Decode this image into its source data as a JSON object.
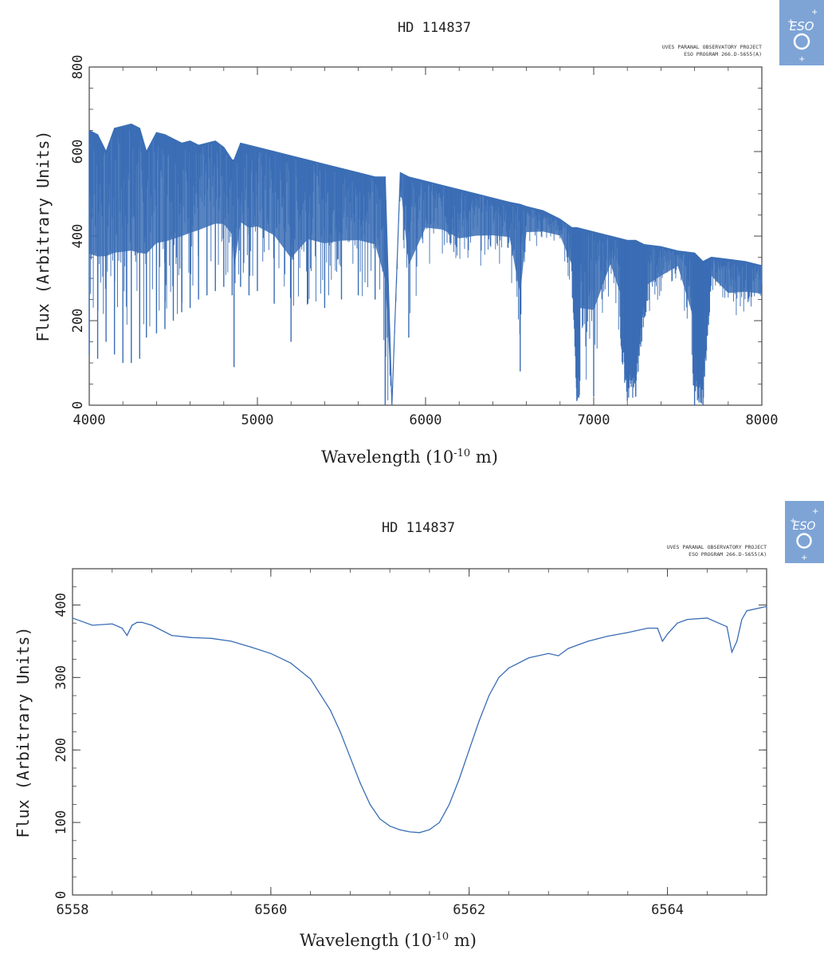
{
  "chart_data": [
    {
      "type": "line",
      "title": "HD 114837",
      "credit_lines": [
        "UVES PARANAL OBSERVATORY PROJECT",
        "ESO PROGRAM 266.D-5655(A)"
      ],
      "xlabel": "Wavelength (10",
      "xlabel_exp": "-10",
      "xlabel_unit": " m)",
      "ylabel": "Flux (Arbitrary Units)",
      "xlim": [
        4000,
        8000
      ],
      "ylim": [
        0,
        800
      ],
      "xticks": [
        "4000",
        "5000",
        "6000",
        "7000",
        "8000"
      ],
      "yticks": [
        "0",
        "200",
        "400",
        "600",
        "800"
      ],
      "grid": false,
      "color": "#3a6db5",
      "series": [
        {
          "x": [
            4000,
            4050,
            4100,
            4150,
            4200,
            4250,
            4300,
            4340,
            4400,
            4450,
            4500,
            4550,
            4600,
            4650,
            4700,
            4750,
            4800,
            4850,
            4861,
            4900,
            4950,
            5000,
            5100,
            5200,
            5300,
            5400,
            5500,
            5600,
            5700,
            5760,
            5800,
            5850,
            5900,
            6000,
            6100,
            6200,
            6300,
            6400,
            6500,
            6563,
            6600,
            6700,
            6800,
            6870,
            6900,
            7000,
            7100,
            7200,
            7250,
            7300,
            7400,
            7500,
            7600,
            7650,
            7700,
            7800,
            7900,
            8000
          ],
          "y_top": [
            650,
            640,
            600,
            655,
            660,
            665,
            655,
            600,
            645,
            640,
            630,
            620,
            625,
            615,
            620,
            625,
            610,
            580,
            580,
            620,
            615,
            610,
            600,
            590,
            580,
            570,
            560,
            550,
            540,
            540,
            0,
            550,
            540,
            530,
            520,
            510,
            500,
            490,
            480,
            475,
            470,
            460,
            440,
            420,
            420,
            410,
            400,
            390,
            390,
            380,
            375,
            365,
            360,
            340,
            350,
            345,
            340,
            330
          ],
          "y_min": [
            120,
            110,
            150,
            120,
            100,
            100,
            110,
            160,
            170,
            180,
            200,
            220,
            230,
            250,
            260,
            270,
            280,
            260,
            90,
            280,
            260,
            270,
            240,
            150,
            240,
            230,
            250,
            260,
            250,
            0,
            0,
            500,
            160,
            330,
            330,
            300,
            320,
            330,
            330,
            80,
            360,
            370,
            370,
            260,
            10,
            20,
            280,
            10,
            20,
            200,
            250,
            300,
            0,
            0,
            270,
            200,
            210,
            210
          ]
        }
      ]
    },
    {
      "type": "line",
      "title": "HD 114837",
      "credit_lines": [
        "UVES PARANAL OBSERVATORY PROJECT",
        "ESO PROGRAM 266.D-5655(A)"
      ],
      "xlabel": "Wavelength (10",
      "xlabel_exp": "-10",
      "xlabel_unit": " m)",
      "ylabel": "Flux (Arbitrary Units)",
      "xlim": [
        6558,
        6565
      ],
      "ylim": [
        0,
        450
      ],
      "xticks": [
        "6558",
        "6560",
        "6562",
        "6564"
      ],
      "xtick_values": [
        6558,
        6560,
        6562,
        6564
      ],
      "yticks": [
        "0",
        "100",
        "200",
        "300",
        "400"
      ],
      "ytick_values": [
        0,
        100,
        200,
        300,
        400
      ],
      "grid": false,
      "color": "#3a6db5",
      "series": [
        {
          "x": [
            6558.0,
            6558.2,
            6558.4,
            6558.5,
            6558.55,
            6558.6,
            6558.65,
            6558.7,
            6558.8,
            6559.0,
            6559.2,
            6559.4,
            6559.6,
            6559.8,
            6560.0,
            6560.2,
            6560.4,
            6560.6,
            6560.7,
            6560.8,
            6560.9,
            6561.0,
            6561.1,
            6561.2,
            6561.3,
            6561.4,
            6561.5,
            6561.6,
            6561.7,
            6561.8,
            6561.9,
            6562.0,
            6562.1,
            6562.2,
            6562.3,
            6562.4,
            6562.6,
            6562.8,
            6562.9,
            6563.0,
            6563.2,
            6563.4,
            6563.6,
            6563.8,
            6563.9,
            6563.95,
            6564.0,
            6564.1,
            6564.2,
            6564.4,
            6564.6,
            6564.65,
            6564.7,
            6564.75,
            6564.8,
            6565.0
          ],
          "y": [
            382,
            372,
            374,
            368,
            358,
            372,
            376,
            376,
            372,
            358,
            355,
            354,
            350,
            342,
            333,
            320,
            298,
            255,
            225,
            190,
            155,
            125,
            105,
            95,
            90,
            87,
            86,
            90,
            100,
            125,
            160,
            200,
            240,
            275,
            300,
            313,
            327,
            333,
            330,
            340,
            350,
            357,
            362,
            368,
            368,
            350,
            360,
            375,
            380,
            382,
            370,
            335,
            350,
            380,
            392,
            398
          ]
        }
      ]
    }
  ]
}
